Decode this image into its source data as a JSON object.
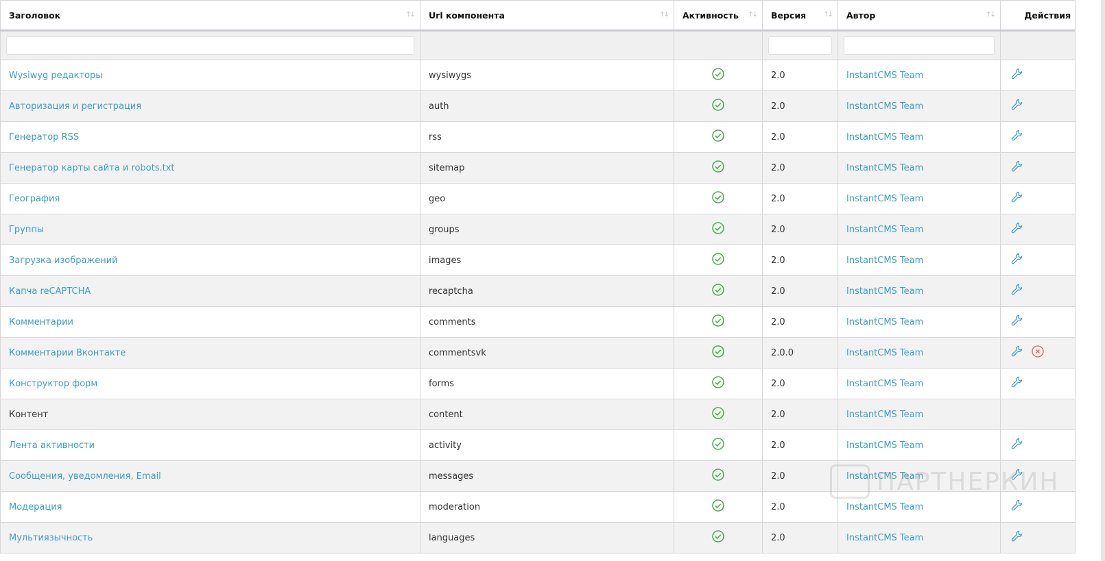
{
  "columns": [
    "Заголовок",
    "Url компонента",
    "Активность",
    "Версия",
    "Автор",
    "Действия"
  ],
  "sort_icon": "↑↓",
  "colors": {
    "link": "#3a9fc9",
    "active": "#4caf50",
    "delete": "#e06060"
  },
  "rows": [
    {
      "title": "Wysiwyg редакторы",
      "url": "wysiwygs",
      "active": true,
      "version": "2.0",
      "author": "InstantCMS Team",
      "link": true,
      "edit": true,
      "delete": false
    },
    {
      "title": "Авторизация и регистрация",
      "url": "auth",
      "active": true,
      "version": "2.0",
      "author": "InstantCMS Team",
      "link": true,
      "edit": true,
      "delete": false
    },
    {
      "title": "Генератор RSS",
      "url": "rss",
      "active": true,
      "version": "2.0",
      "author": "InstantCMS Team",
      "link": true,
      "edit": true,
      "delete": false
    },
    {
      "title": "Генератор карты сайта и robots.txt",
      "url": "sitemap",
      "active": true,
      "version": "2.0",
      "author": "InstantCMS Team",
      "link": true,
      "edit": true,
      "delete": false
    },
    {
      "title": "География",
      "url": "geo",
      "active": true,
      "version": "2.0",
      "author": "InstantCMS Team",
      "link": true,
      "edit": true,
      "delete": false
    },
    {
      "title": "Группы",
      "url": "groups",
      "active": true,
      "version": "2.0",
      "author": "InstantCMS Team",
      "link": true,
      "edit": true,
      "delete": false
    },
    {
      "title": "Загрузка изображений",
      "url": "images",
      "active": true,
      "version": "2.0",
      "author": "InstantCMS Team",
      "link": true,
      "edit": true,
      "delete": false
    },
    {
      "title": "Капча reCAPTCHA",
      "url": "recaptcha",
      "active": true,
      "version": "2.0",
      "author": "InstantCMS Team",
      "link": true,
      "edit": true,
      "delete": false
    },
    {
      "title": "Комментарии",
      "url": "comments",
      "active": true,
      "version": "2.0",
      "author": "InstantCMS Team",
      "link": true,
      "edit": true,
      "delete": false
    },
    {
      "title": "Комментарии Вконтакте",
      "url": "commentsvk",
      "active": true,
      "version": "2.0.0",
      "author": "InstantCMS Team",
      "link": true,
      "edit": true,
      "delete": true
    },
    {
      "title": "Конструктор форм",
      "url": "forms",
      "active": true,
      "version": "2.0",
      "author": "InstantCMS Team",
      "link": true,
      "edit": true,
      "delete": false
    },
    {
      "title": "Контент",
      "url": "content",
      "active": true,
      "version": "2.0",
      "author": "InstantCMS Team",
      "link": false,
      "edit": false,
      "delete": false
    },
    {
      "title": "Лента активности",
      "url": "activity",
      "active": true,
      "version": "2.0",
      "author": "InstantCMS Team",
      "link": true,
      "edit": true,
      "delete": false
    },
    {
      "title": "Сообщения, уведомления, Email",
      "url": "messages",
      "active": true,
      "version": "2.0",
      "author": "InstantCMS Team",
      "link": true,
      "edit": true,
      "delete": false
    },
    {
      "title": "Модерация",
      "url": "moderation",
      "active": true,
      "version": "2.0",
      "author": "InstantCMS Team",
      "link": true,
      "edit": true,
      "delete": false
    },
    {
      "title": "Мультиязычность",
      "url": "languages",
      "active": true,
      "version": "2.0",
      "author": "InstantCMS Team",
      "link": true,
      "edit": true,
      "delete": false
    }
  ],
  "watermark": "ПАРТНЕРКИН"
}
